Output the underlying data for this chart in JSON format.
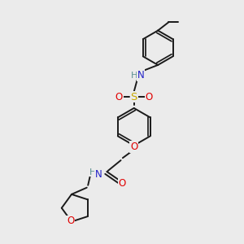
{
  "bg_color": "#ebebeb",
  "bond_color": "#1a1a1a",
  "bond_width": 1.4,
  "atom_colors": {
    "N": "#2020c8",
    "O": "#e00000",
    "S": "#c8a800",
    "H": "#5a9090",
    "C": "#1a1a1a"
  },
  "fs": 8.5
}
